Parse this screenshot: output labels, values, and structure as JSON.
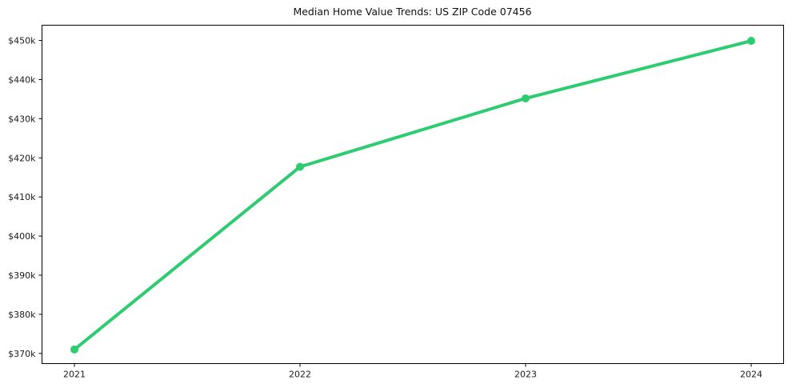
{
  "chart_data": {
    "type": "line",
    "title": "Median Home Value Trends: US ZIP Code 07456",
    "categories": [
      "2021",
      "2022",
      "2023",
      "2024"
    ],
    "values": [
      371000,
      417700,
      435200,
      449900
    ],
    "y_ticks": [
      {
        "value": 370000,
        "label": "$370k"
      },
      {
        "value": 380000,
        "label": "$380k"
      },
      {
        "value": 390000,
        "label": "$390k"
      },
      {
        "value": 400000,
        "label": "$400k"
      },
      {
        "value": 410000,
        "label": "$410k"
      },
      {
        "value": 420000,
        "label": "$420k"
      },
      {
        "value": 430000,
        "label": "$430k"
      },
      {
        "value": 440000,
        "label": "$440k"
      },
      {
        "value": 450000,
        "label": "$450k"
      }
    ],
    "xlabel": "",
    "ylabel": "",
    "ylim": [
      367400,
      453900
    ],
    "grid": false,
    "legend_position": "none",
    "line_color": "#2ecc71",
    "marker": "circle",
    "axis_color": "#000000",
    "text_color": "#1a1a1a",
    "background_color": "#ffffff"
  }
}
